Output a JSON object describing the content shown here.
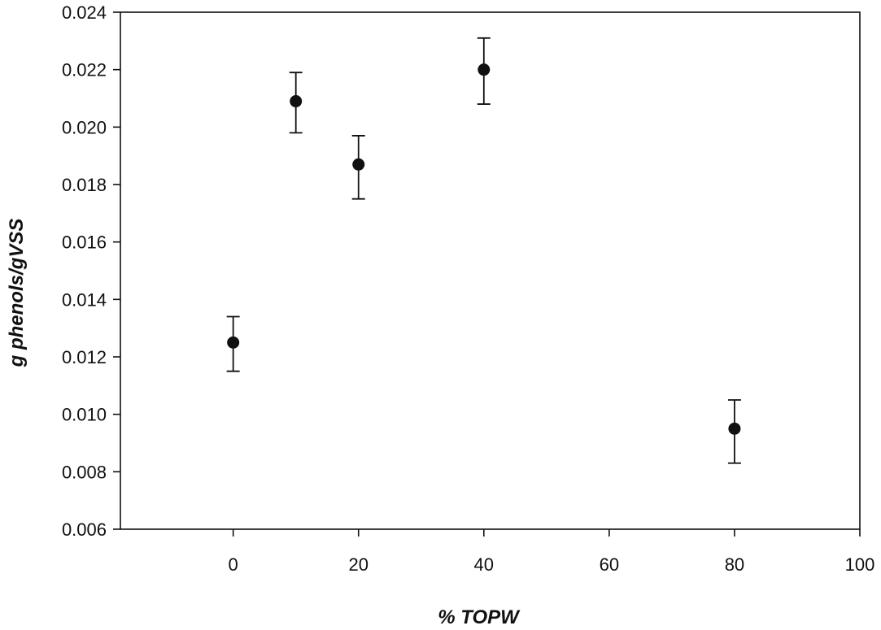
{
  "chart_data": {
    "type": "scatter",
    "title": "",
    "xlabel": "% TOPW",
    "ylabel": "g phenols/gVSS",
    "xlim": [
      -18,
      100
    ],
    "ylim": [
      0.006,
      0.024
    ],
    "x_ticks": [
      0,
      20,
      40,
      60,
      80,
      100
    ],
    "x_tick_labels": [
      "0",
      "20",
      "40",
      "60",
      "80",
      "100"
    ],
    "y_ticks": [
      0.006,
      0.008,
      0.01,
      0.012,
      0.014,
      0.016,
      0.018,
      0.02,
      0.022,
      0.024
    ],
    "y_tick_labels": [
      "0.006",
      "0.008",
      "0.010",
      "0.012",
      "0.014",
      "0.016",
      "0.018",
      "0.020",
      "0.022",
      "0.024"
    ],
    "grid": false,
    "legend": "none",
    "marker_color": "#111111",
    "series": [
      {
        "x": [
          0,
          10,
          20,
          40,
          80
        ],
        "y": [
          0.0125,
          0.0209,
          0.0187,
          0.022,
          0.0095
        ],
        "error_low": [
          0.0115,
          0.0198,
          0.0175,
          0.0208,
          0.0083
        ],
        "error_high": [
          0.0134,
          0.0219,
          0.0197,
          0.0231,
          0.0105
        ]
      }
    ]
  }
}
